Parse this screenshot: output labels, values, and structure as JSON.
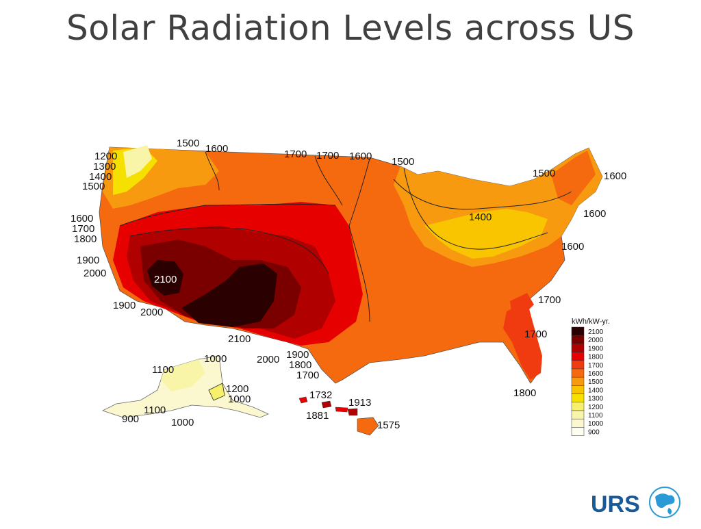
{
  "title": "Solar Radiation Levels across US",
  "legend": {
    "title": "kWh/kW-yr.",
    "items": [
      {
        "label": "2100",
        "color": "#2b0000"
      },
      {
        "label": "2000",
        "color": "#7a0000"
      },
      {
        "label": "1900",
        "color": "#b00000"
      },
      {
        "label": "1800",
        "color": "#e60000"
      },
      {
        "label": "1700",
        "color": "#f03b10"
      },
      {
        "label": "1600",
        "color": "#f56a0f"
      },
      {
        "label": "1500",
        "color": "#f89a10"
      },
      {
        "label": "1400",
        "color": "#f9c400"
      },
      {
        "label": "1300",
        "color": "#f5e000"
      },
      {
        "label": "1200",
        "color": "#f6f06a"
      },
      {
        "label": "1100",
        "color": "#f8f5a8"
      },
      {
        "label": "1000",
        "color": "#fbf8cf"
      },
      {
        "label": "900",
        "color": "#fefdf0"
      }
    ]
  },
  "contour_labels": [
    "1500",
    "1600",
    "1700",
    "1700",
    "1600",
    "1500",
    "1200",
    "1300",
    "1400",
    "1500",
    "1600",
    "1700",
    "1800",
    "1900",
    "2000",
    "2100",
    "1900",
    "2000",
    "2100",
    "2000",
    "1900",
    "1800",
    "1700",
    "1500",
    "1600",
    "1400",
    "1600",
    "1600",
    "1700",
    "1700",
    "1800"
  ],
  "alaska_labels": [
    "1100",
    "1000",
    "1200",
    "1000",
    "1100",
    "900",
    "1000"
  ],
  "hawaii_labels": [
    "1732",
    "1913",
    "1881",
    "1575"
  ],
  "logo": {
    "text": "URS"
  }
}
